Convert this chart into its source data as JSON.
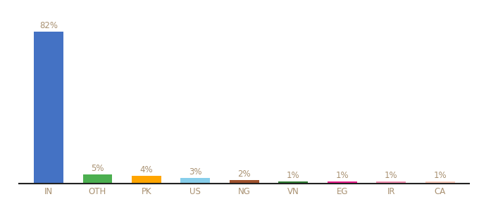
{
  "categories": [
    "IN",
    "OTH",
    "PK",
    "US",
    "NG",
    "VN",
    "EG",
    "IR",
    "CA"
  ],
  "values": [
    82,
    5,
    4,
    3,
    2,
    1,
    1,
    1,
    1
  ],
  "labels": [
    "82%",
    "5%",
    "4%",
    "3%",
    "2%",
    "1%",
    "1%",
    "1%",
    "1%"
  ],
  "bar_colors": [
    "#4472C4",
    "#4CAF50",
    "#FFA500",
    "#87CEEB",
    "#A0522D",
    "#2E7D32",
    "#E91E8C",
    "#F48FB1",
    "#FFCCBC"
  ],
  "ylim": [
    0,
    90
  ],
  "label_color": "#A89070",
  "tick_color": "#A89070",
  "background_color": "#FFFFFF",
  "bottom_spine_color": "#222222",
  "label_fontsize": 8.5,
  "tick_fontsize": 8.5,
  "bar_width": 0.6
}
